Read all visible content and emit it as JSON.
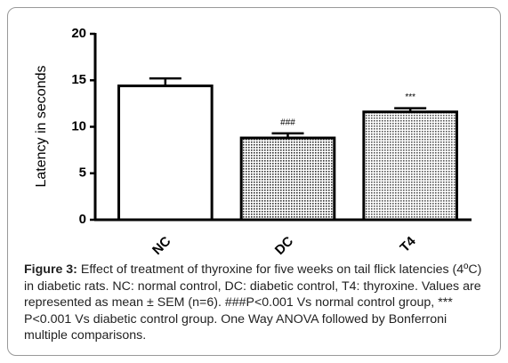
{
  "chart_data": {
    "type": "bar",
    "y_label": "Latency in seconds",
    "categories": [
      "NC",
      "DC",
      "T4"
    ],
    "values": [
      14.4,
      8.8,
      11.6
    ],
    "errors": [
      0.8,
      0.5,
      0.4
    ],
    "annotations": [
      null,
      "###",
      "***"
    ],
    "colors": [
      "#ffffff",
      "#333333",
      "#555555"
    ],
    "ylim": [
      0,
      20
    ],
    "yticks": [
      0,
      5,
      10,
      15,
      20
    ],
    "caption_label": "Figure 3:",
    "caption": "Effect of treatment of thyroxine for five weeks on tail flick latencies (4ºC) in diabetic rats. NC: normal control, DC: diabetic control, T4: thyroxine. Values are represented as mean ± SEM (n=6). ###P<0.001 Vs normal control group, *** P<0.001 Vs diabetic control group. One Way ANOVA followed by Bonferroni multiple comparisons."
  }
}
